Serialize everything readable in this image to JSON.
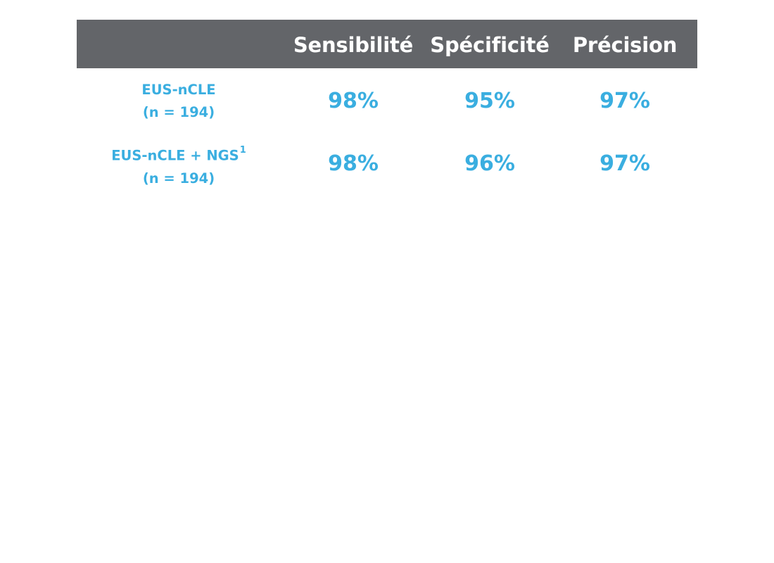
{
  "table": {
    "headers": [
      "Sensibilité",
      "Spécificité",
      "Précision"
    ],
    "rows": [
      {
        "label_line1": "EUS-nCLE",
        "label_sup": "",
        "label_line2": "(n = 194)",
        "values": [
          "98%",
          "95%",
          "97%"
        ]
      },
      {
        "label_line1": "EUS-nCLE + NGS",
        "label_sup": "1",
        "label_line2": "(n = 194)",
        "values": [
          "98%",
          "96%",
          "97%"
        ]
      }
    ]
  },
  "colors": {
    "header_bg": "#636569",
    "header_text": "#ffffff",
    "accent": "#3aaee0",
    "background": "#ffffff"
  }
}
